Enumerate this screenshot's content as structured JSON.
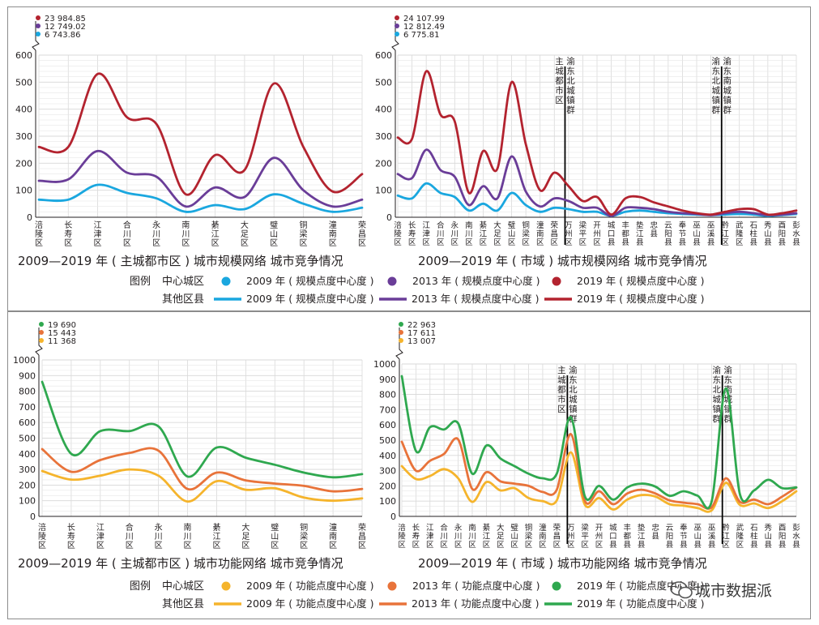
{
  "colors": {
    "y2009_top": "#1aa7df",
    "y2013_top": "#6a3d98",
    "y2019_top": "#b3232f",
    "y2009_bottom": "#f5b42c",
    "y2013_bottom": "#e8733a",
    "y2019_bottom": "#2fa84f",
    "grid": "#d9d9d9",
    "divider": "#000000"
  },
  "top": {
    "legend": {
      "title": "图例",
      "row1_label": "中心城区",
      "row2_label": "其他区县",
      "items": [
        "2009 年 ( 规模点度中心度 )",
        "2013 年 ( 规模点度中心度 )",
        "2019 年 ( 规模点度中心度 )"
      ]
    }
  },
  "bottom": {
    "legend": {
      "title": "图例",
      "row1_label": "中心城区",
      "row2_label": "其他区县",
      "items": [
        "2009 年 ( 功能点度中心度 )",
        "2013 年 ( 功能点度中心度 )",
        "2019 年 ( 功能点度中心度 )"
      ]
    }
  },
  "watermark": "城市数据派",
  "chart_data": [
    {
      "type": "line",
      "title": "2009—2019 年 ( 主城都市区 ) 城市规模网络 城市竞争情况",
      "categories": [
        "涪陵区",
        "长寿区",
        "江津区",
        "合川区",
        "永川区",
        "南川区",
        "綦江区",
        "大足区",
        "璧山区",
        "铜梁区",
        "潼南区",
        "荣昌区"
      ],
      "series": [
        {
          "name": "2009 年 ( 规模点度中心度 )",
          "values": [
            65,
            65,
            120,
            90,
            70,
            20,
            45,
            30,
            85,
            50,
            20,
            35
          ]
        },
        {
          "name": "2013 年 ( 规模点度中心度 )",
          "values": [
            135,
            140,
            245,
            165,
            150,
            40,
            110,
            75,
            220,
            100,
            40,
            65
          ]
        },
        {
          "name": "2019 年 ( 规模点度中心度 )",
          "values": [
            260,
            260,
            530,
            370,
            345,
            85,
            230,
            175,
            495,
            260,
            95,
            160
          ]
        }
      ],
      "ylim": [
        0,
        600
      ],
      "yticks": [
        0,
        100,
        200,
        300,
        400,
        500,
        600
      ],
      "break_labels": [
        "23 984.85",
        "12 749.02",
        "6 743.86"
      ],
      "grid": true
    },
    {
      "type": "line",
      "title": "2009—2019 年 ( 市域 ) 城市规模网络 城市竞争情况",
      "categories": [
        "涪陵区",
        "长寿区",
        "江津区",
        "合川区",
        "永川区",
        "南川区",
        "綦江区",
        "大足区",
        "璧山区",
        "铜梁区",
        "潼南区",
        "荣昌区",
        "万州区",
        "梁平区",
        "开州区",
        "城口县",
        "丰都县",
        "垫江县",
        "忠县",
        "云阳县",
        "奉节县",
        "巫山县",
        "巫溪县",
        "黔江区",
        "武隆区",
        "石柱县",
        "秀山县",
        "酉阳县",
        "彭水县"
      ],
      "series": [
        {
          "name": "2009 年 ( 规模点度中心度 )",
          "values": [
            80,
            70,
            125,
            90,
            75,
            25,
            50,
            25,
            90,
            45,
            20,
            35,
            30,
            20,
            20,
            5,
            20,
            25,
            20,
            15,
            12,
            10,
            8,
            10,
            12,
            10,
            5,
            8,
            12
          ]
        },
        {
          "name": "2013 年 ( 规模点度中心度 )",
          "values": [
            160,
            145,
            250,
            175,
            150,
            45,
            115,
            70,
            225,
            95,
            40,
            70,
            60,
            35,
            35,
            5,
            35,
            35,
            30,
            20,
            15,
            12,
            8,
            15,
            20,
            15,
            8,
            10,
            15
          ]
        },
        {
          "name": "2019 年 ( 规模点度中心度 )",
          "values": [
            295,
            290,
            540,
            380,
            355,
            90,
            245,
            180,
            500,
            270,
            100,
            165,
            115,
            60,
            75,
            10,
            70,
            75,
            55,
            40,
            25,
            15,
            10,
            20,
            30,
            30,
            10,
            15,
            25
          ]
        }
      ],
      "ylim": [
        0,
        600
      ],
      "yticks": [
        0,
        100,
        200,
        300,
        400,
        500,
        600
      ],
      "break_labels": [
        "24 107.99",
        "12 812.49",
        "6 775.81"
      ],
      "dividers": [
        {
          "after": "荣昌区",
          "left_label": "主城都市区",
          "right_label": "渝东北城镇群"
        },
        {
          "after": "巫溪县",
          "left_label": "渝东北城镇群",
          "right_label": "渝东南城镇群"
        }
      ],
      "grid": true
    },
    {
      "type": "line",
      "title": "2009—2019 年 ( 主城都市区 ) 城市功能网络 城市竞争情况",
      "categories": [
        "涪陵区",
        "长寿区",
        "江津区",
        "合川区",
        "永川区",
        "南川区",
        "綦江区",
        "大足区",
        "璧山区",
        "铜梁区",
        "潼南区",
        "荣昌区"
      ],
      "series": [
        {
          "name": "2009 年 ( 功能点度中心度 )",
          "values": [
            290,
            235,
            260,
            300,
            260,
            95,
            225,
            170,
            180,
            120,
            100,
            115
          ]
        },
        {
          "name": "2013 年 ( 功能点度中心度 )",
          "values": [
            430,
            285,
            360,
            405,
            420,
            175,
            280,
            230,
            210,
            195,
            160,
            175
          ]
        },
        {
          "name": "2019 年 ( 功能点度中心度 )",
          "values": [
            860,
            400,
            545,
            545,
            575,
            255,
            440,
            375,
            330,
            280,
            250,
            270
          ]
        }
      ],
      "ylim": [
        0,
        1000
      ],
      "yticks": [
        0,
        100,
        200,
        300,
        400,
        500,
        600,
        700,
        800,
        900,
        1000
      ],
      "break_labels": [
        "19 690",
        "15 443",
        "11 368"
      ],
      "grid": true
    },
    {
      "type": "line",
      "title": "2009—2019 年 ( 市域 ) 城市功能网络 城市竞争情况",
      "categories": [
        "涪陵区",
        "长寿区",
        "江津区",
        "合川区",
        "永川区",
        "南川区",
        "綦江区",
        "大足区",
        "璧山区",
        "铜梁区",
        "潼南区",
        "荣昌区",
        "万州区",
        "梁平区",
        "开州区",
        "城口县",
        "丰都县",
        "垫江县",
        "忠县",
        "云阳县",
        "奉节县",
        "巫山县",
        "巫溪县",
        "黔江区",
        "武隆区",
        "石柱县",
        "秀山县",
        "酉阳县",
        "彭水县"
      ],
      "series": [
        {
          "name": "2009 年 ( 功能点度中心度 )",
          "values": [
            330,
            245,
            265,
            310,
            250,
            95,
            225,
            170,
            185,
            120,
            100,
            105,
            420,
            75,
            120,
            45,
            110,
            140,
            130,
            80,
            70,
            55,
            40,
            220,
            75,
            85,
            55,
            100,
            165
          ]
        },
        {
          "name": "2013 年 ( 功能点度中心度 )",
          "values": [
            490,
            300,
            365,
            410,
            505,
            180,
            290,
            230,
            215,
            200,
            160,
            175,
            540,
            100,
            165,
            80,
            150,
            175,
            150,
            105,
            90,
            80,
            60,
            250,
            95,
            110,
            80,
            130,
            190
          ]
        },
        {
          "name": "2019 年 ( 功能点度中心度 )",
          "values": [
            920,
            430,
            585,
            570,
            610,
            280,
            465,
            380,
            330,
            280,
            250,
            280,
            650,
            130,
            200,
            110,
            190,
            215,
            195,
            135,
            165,
            135,
            100,
            840,
            145,
            170,
            240,
            185,
            190
          ]
        }
      ],
      "ylim": [
        0,
        1000
      ],
      "yticks": [
        0,
        100,
        200,
        300,
        400,
        500,
        600,
        700,
        800,
        900,
        1000
      ],
      "break_labels": [
        "22 963",
        "17 611",
        "13 007"
      ],
      "dividers": [
        {
          "after": "荣昌区",
          "left_label": "主城都市区",
          "right_label": "渝东北城镇群"
        },
        {
          "after": "巫溪县",
          "left_label": "渝东北城镇群",
          "right_label": "渝东南城镇群"
        }
      ],
      "grid": true
    }
  ]
}
